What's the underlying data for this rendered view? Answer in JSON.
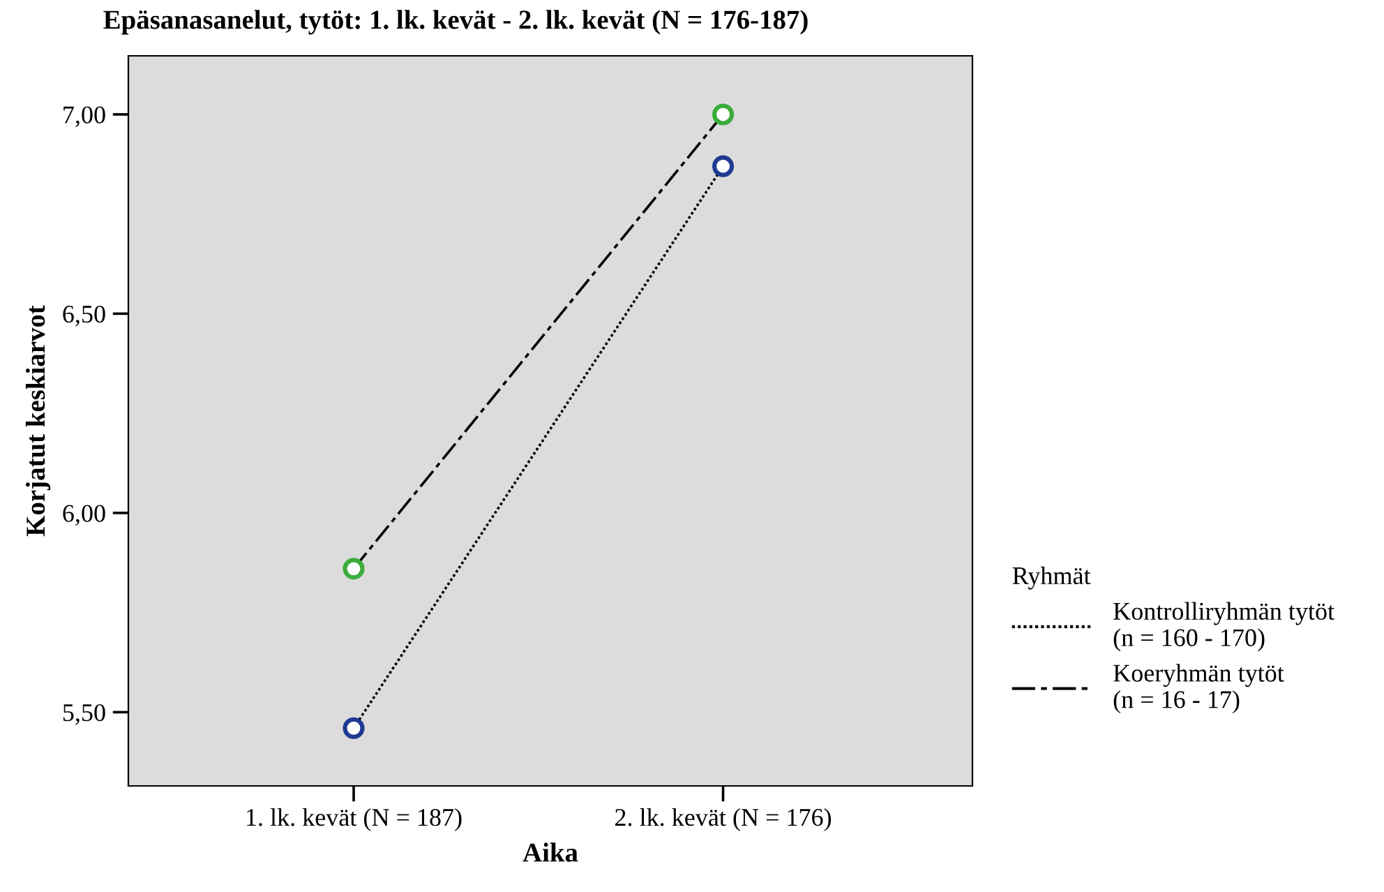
{
  "chart_data": {
    "type": "line",
    "title": "Epäsanasanelut, tytöt: 1. lk. kevät - 2. lk. kevät (N = 176-187)",
    "xlabel": "Aika",
    "ylabel": "Korjatut keskiarvot",
    "legend_title": "Ryhmät",
    "categories": [
      "1. lk. kevät (N = 187)",
      "2. lk. kevät (N = 176)"
    ],
    "series": [
      {
        "name": "Kontrolliryhmän tytöt (n = 160 - 170)",
        "color": "#1f3a93",
        "values": [
          5.46,
          6.87
        ],
        "line_style": "dotted"
      },
      {
        "name": "Koeryhmän tytöt (n = 16 - 17)",
        "color": "#3aad3a",
        "values": [
          5.86,
          7.0
        ],
        "line_style": "dashdot"
      }
    ],
    "ylim": [
      5.315,
      7.147
    ],
    "yticks": [
      {
        "value": 5.5,
        "label": "5,50"
      },
      {
        "value": 6.0,
        "label": "6,00"
      },
      {
        "value": 6.5,
        "label": "6,50"
      },
      {
        "value": 7.0,
        "label": "7,00"
      }
    ],
    "marker": "circle",
    "grid": false,
    "legend": "right"
  }
}
